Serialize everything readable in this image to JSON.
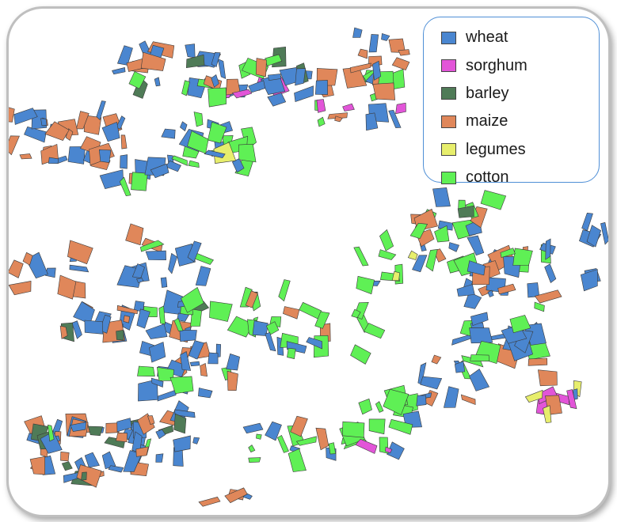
{
  "legend": {
    "items": [
      {
        "label": "wheat",
        "color": "#4a86d0"
      },
      {
        "label": "sorghum",
        "color": "#e255d8"
      },
      {
        "label": "barley",
        "color": "#4f7b57"
      },
      {
        "label": "maize",
        "color": "#e0875a"
      },
      {
        "label": "legumes",
        "color": "#e7ee6c"
      },
      {
        "label": "cotton",
        "color": "#5ff055"
      }
    ]
  },
  "map": {
    "background": "#ffffff",
    "frame_border_color": "#bfbfbf"
  }
}
